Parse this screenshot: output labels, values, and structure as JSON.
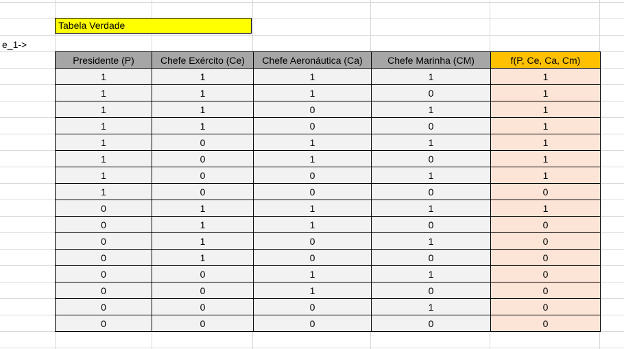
{
  "sheet": {
    "title": "Tabela Verdade",
    "row_label": "e_1->",
    "colors": {
      "title_fill": "#ffff00",
      "header_fill": "#a6a6a6",
      "output_header_fill": "#ffc000",
      "body_fill": "#f2f2f2",
      "output_body_fill": "#fce4d6"
    }
  },
  "table": {
    "headers": [
      "Presidente (P)",
      "Chefe Exército (Ce)",
      "Chefe Aeronáutica (Ca)",
      "Chefe Marinha (CM)",
      "f(P, Ce, Ca, Cm)"
    ],
    "rows": [
      [
        "1",
        "1",
        "1",
        "1",
        "1"
      ],
      [
        "1",
        "1",
        "1",
        "0",
        "1"
      ],
      [
        "1",
        "1",
        "0",
        "1",
        "1"
      ],
      [
        "1",
        "1",
        "0",
        "0",
        "1"
      ],
      [
        "1",
        "0",
        "1",
        "1",
        "1"
      ],
      [
        "1",
        "0",
        "1",
        "0",
        "1"
      ],
      [
        "1",
        "0",
        "0",
        "1",
        "1"
      ],
      [
        "1",
        "0",
        "0",
        "0",
        "0"
      ],
      [
        "0",
        "1",
        "1",
        "1",
        "1"
      ],
      [
        "0",
        "1",
        "1",
        "0",
        "0"
      ],
      [
        "0",
        "1",
        "0",
        "1",
        "0"
      ],
      [
        "0",
        "1",
        "0",
        "0",
        "0"
      ],
      [
        "0",
        "0",
        "1",
        "1",
        "0"
      ],
      [
        "0",
        "0",
        "1",
        "0",
        "0"
      ],
      [
        "0",
        "0",
        "0",
        "1",
        "0"
      ],
      [
        "0",
        "0",
        "0",
        "0",
        "0"
      ]
    ]
  }
}
